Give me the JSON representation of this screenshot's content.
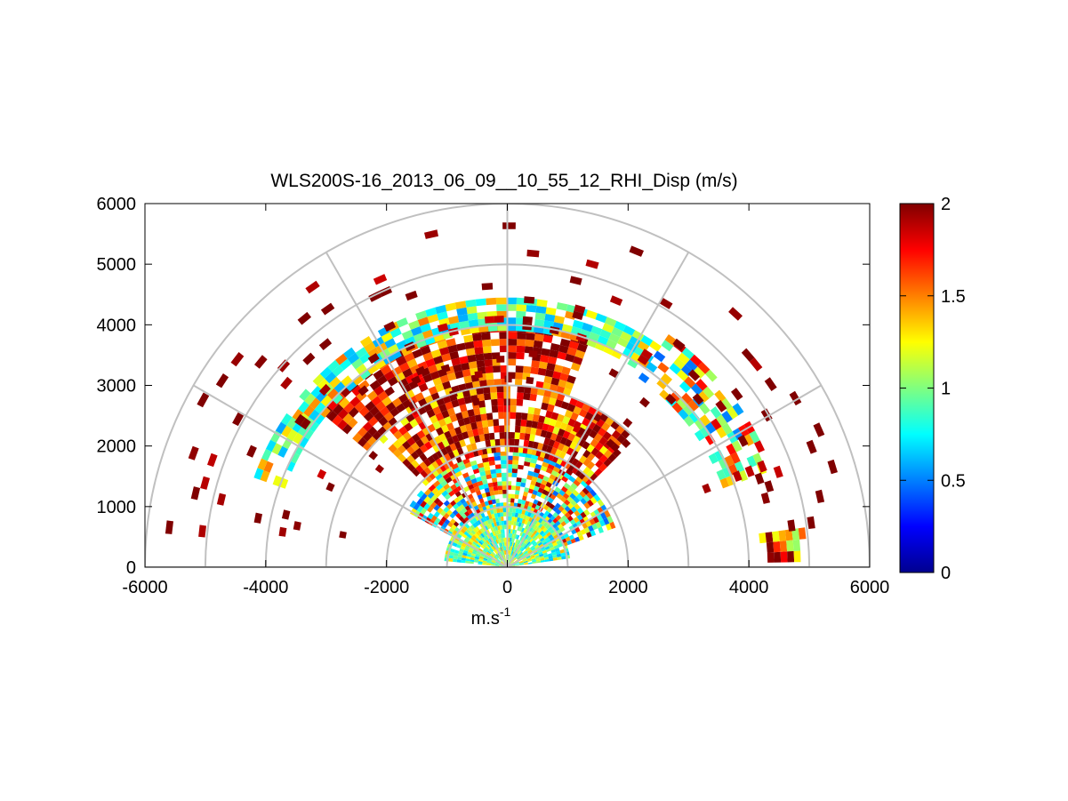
{
  "chart_data": {
    "type": "heatmap",
    "subtype": "polar RHI scan (range-height indicator)",
    "title": "WLS200S-16_2013_06_09__10_55_12_RHI_Disp (m/s)",
    "xlabel": "m.s",
    "xlabel_superscript": "-1",
    "ylabel": "",
    "xlim": [
      -6000,
      6000
    ],
    "ylim": [
      0,
      6000
    ],
    "x_ticks": [
      "-6000",
      "-4000",
      "-2000",
      "0",
      "2000",
      "4000",
      "6000"
    ],
    "y_ticks": [
      "0",
      "1000",
      "2000",
      "3000",
      "4000",
      "5000",
      "6000"
    ],
    "polar_grid": {
      "range_rings": [
        1000,
        2000,
        3000,
        4000,
        5000,
        6000
      ],
      "spokes_deg": [
        0,
        30,
        60,
        90,
        120,
        150,
        180
      ]
    },
    "colorbar": {
      "colormap": "jet",
      "min": 0,
      "max": 2,
      "ticks": [
        "0",
        "0.5",
        "1",
        "1.5",
        "2"
      ]
    },
    "sectors": [
      {
        "r": [
          0,
          1000
        ],
        "az": [
          8,
          172
        ],
        "mean": 1.0,
        "spread": 0.25,
        "fill": 0.95
      },
      {
        "r": [
          1000,
          1900
        ],
        "az": [
          20,
          150
        ],
        "mean": 1.2,
        "spread": 0.5,
        "fill": 0.8
      },
      {
        "r": [
          1900,
          3000
        ],
        "az": [
          45,
          135
        ],
        "mean": 1.75,
        "spread": 0.35,
        "fill": 0.85
      },
      {
        "r": [
          3000,
          3900
        ],
        "az": [
          70,
          140
        ],
        "mean": 1.8,
        "spread": 0.3,
        "fill": 0.8
      },
      {
        "r": [
          3900,
          4400
        ],
        "az": [
          55,
          160
        ],
        "mean": 1.05,
        "spread": 0.3,
        "fill": 0.75
      },
      {
        "r": [
          3800,
          4600
        ],
        "az": [
          20,
          55
        ],
        "mean": 1.15,
        "spread": 0.45,
        "fill": 0.6
      },
      {
        "r": [
          4200,
          4900
        ],
        "az": [
          1,
          6
        ],
        "mean": 1.6,
        "spread": 0.4,
        "fill": 0.85
      },
      {
        "r": [
          2500,
          5800
        ],
        "az": [
          5,
          175
        ],
        "mean": 2.0,
        "spread": 0.1,
        "fill": 0.04
      }
    ]
  }
}
